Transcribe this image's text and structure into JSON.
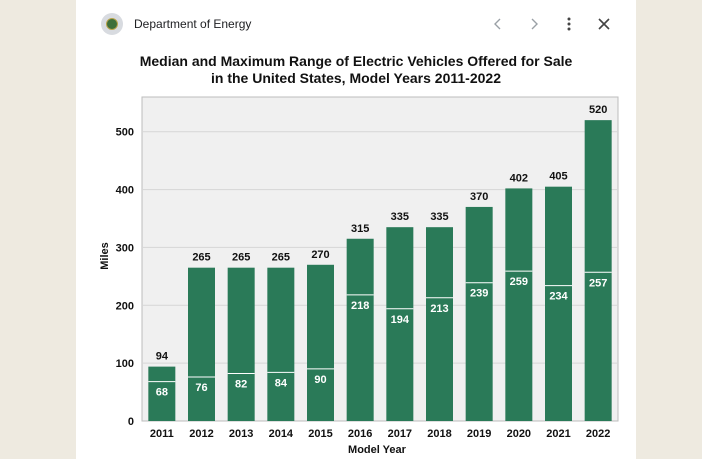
{
  "header": {
    "site_name": "Department of Energy",
    "icons": [
      "back-arrow-icon",
      "forward-arrow-icon",
      "more-options-icon",
      "close-icon"
    ]
  },
  "colors": {
    "bar": "#2a7a58",
    "median_line": "#ffffff",
    "plot_bg": "#f0f0f0",
    "background": "#eeeae0"
  },
  "chart_data": {
    "type": "bar",
    "title_line1": "Median and Maximum Range of Electric Vehicles Offered for Sale",
    "title_line2": "in the United States, Model Years 2011-2022",
    "xlabel": "Model Year",
    "ylabel": "Miles",
    "ylim": [
      0,
      560
    ],
    "yticks": [
      0,
      100,
      200,
      300,
      400,
      500
    ],
    "categories": [
      "2011",
      "2012",
      "2013",
      "2014",
      "2015",
      "2016",
      "2017",
      "2018",
      "2019",
      "2020",
      "2021",
      "2022"
    ],
    "series": [
      {
        "values": [
          94,
          265,
          265,
          265,
          270,
          315,
          335,
          335,
          370,
          402,
          405,
          520
        ]
      },
      {
        "values": [
          68,
          76,
          82,
          84,
          90,
          218,
          194,
          213,
          239,
          259,
          234,
          257
        ]
      }
    ],
    "grid": true
  }
}
